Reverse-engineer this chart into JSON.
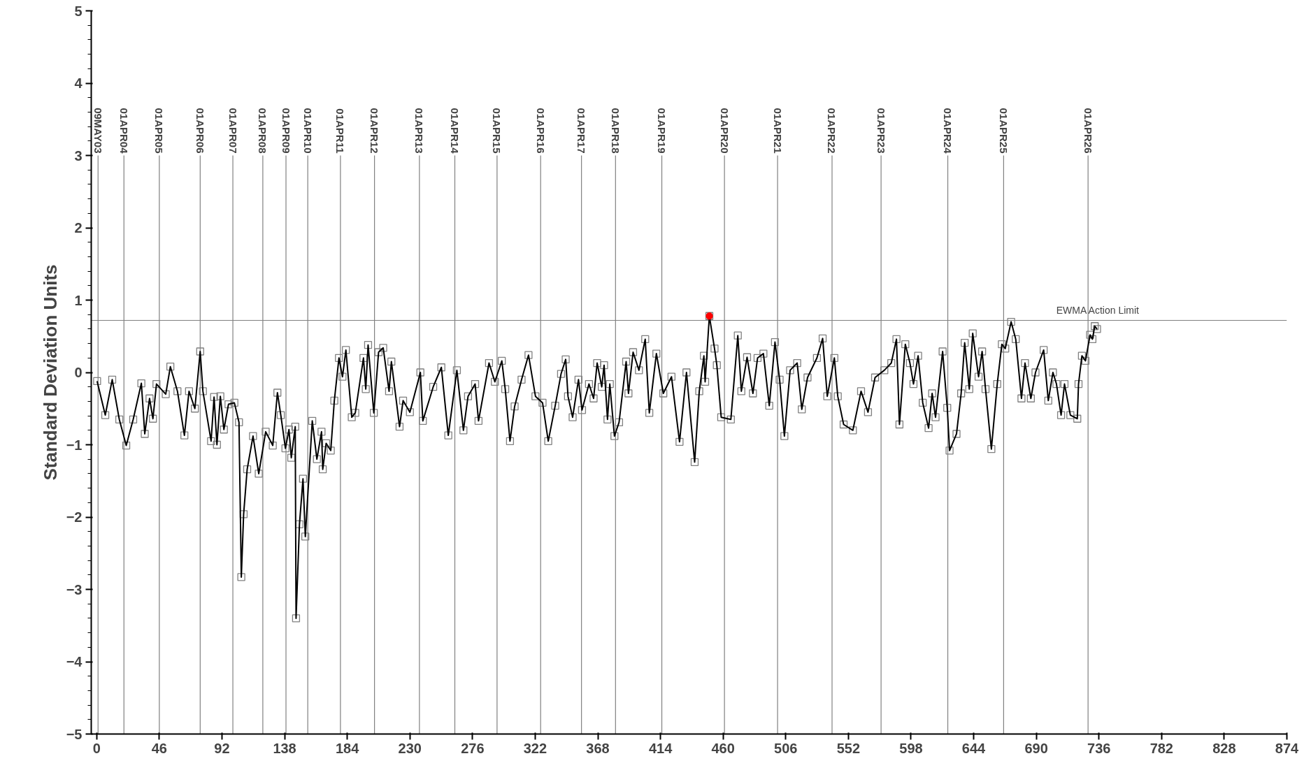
{
  "chart_data": {
    "type": "line",
    "ylabel": "Standard Deviation Units",
    "xlim": [
      -4,
      874
    ],
    "ylim": [
      -5,
      5
    ],
    "xticks": [
      0,
      46,
      92,
      138,
      184,
      230,
      276,
      322,
      368,
      414,
      460,
      506,
      552,
      598,
      644,
      690,
      736,
      782,
      828,
      874
    ],
    "yticks": [
      -5,
      -4,
      -3,
      -2,
      -1,
      0,
      1,
      2,
      3,
      4,
      5
    ],
    "grid": false,
    "marker": "square",
    "line_style": "solid",
    "series": [
      {
        "color": "#000000",
        "x": [
          0.3,
          6.3,
          11.4,
          16.6,
          21.7,
          26.8,
          32.8,
          35.3,
          38.8,
          41.3,
          43.9,
          50.7,
          54.1,
          59.3,
          64.4,
          67.8,
          72.1,
          76.0,
          78.0,
          84.0,
          86.2,
          88.3,
          90.8,
          93.4,
          96.8,
          101.1,
          104.5,
          106.2,
          107.9,
          110.5,
          114.8,
          119.0,
          124.1,
          129.3,
          132.7,
          135.2,
          138.6,
          141.2,
          142.9,
          145.8,
          146.4,
          148.9,
          151.5,
          153.2,
          158.3,
          161.7,
          165.1,
          166.0,
          168.5,
          171.9,
          174.5,
          177.9,
          180.5,
          183.0,
          187.3,
          189.9,
          195.9,
          197.6,
          199.3,
          203.5,
          207.0,
          210.4,
          214.7,
          216.4,
          222.4,
          225.0,
          230.0,
          237.7,
          239.5,
          247.1,
          253.1,
          258.2,
          264.5,
          269.3,
          272.7,
          277.9,
          280.4,
          288.1,
          292.4,
          297.5,
          300.0,
          303.5,
          306.9,
          312.0,
          317.1,
          322.2,
          327.4,
          331.6,
          336.7,
          341.0,
          344.4,
          346.1,
          349.5,
          353.8,
          356.4,
          361.5,
          364.9,
          367.5,
          370.9,
          372.6,
          375.1,
          376.8,
          380.2,
          383.6,
          388.8,
          390.5,
          393.9,
          398.2,
          402.8,
          405.8,
          411.0,
          416.1,
          422.1,
          428.0,
          433.1,
          439.1,
          442.5,
          445.9,
          446.8,
          449.9,
          453.7,
          455.4,
          458.6,
          465.7,
          470.8,
          473.4,
          477.6,
          481.9,
          485.3,
          489.6,
          493.9,
          498.1,
          501.5,
          505.0,
          509.2,
          514.4,
          517.8,
          522.0,
          528.9,
          533.1,
          536.5,
          541.7,
          544.2,
          548.5,
          555.3,
          561.3,
          566.4,
          571.6,
          578.4,
          583.5,
          587.3,
          589.5,
          593.8,
          597.2,
          599.8,
          603.2,
          606.6,
          610.9,
          613.5,
          616.0,
          621.2,
          624.6,
          626.3,
          631.4,
          634.8,
          637.4,
          640.8,
          643.3,
          647.6,
          650.2,
          652.7,
          657.0,
          661.3,
          664.7,
          667.2,
          671.5,
          674.9,
          679.1,
          681.7,
          686.0,
          689.4,
          695.4,
          698.8,
          702.2,
          704.8,
          708.2,
          710.7,
          715.0,
          720.1,
          721.0,
          723.5,
          726.1,
          729.5,
          731.2,
          732.9,
          734.6
        ],
        "values": [
          -0.12,
          -0.59,
          -0.1,
          -0.65,
          -1.01,
          -0.65,
          -0.15,
          -0.85,
          -0.36,
          -0.64,
          -0.16,
          -0.3,
          0.08,
          -0.26,
          -0.87,
          -0.26,
          -0.5,
          0.29,
          -0.26,
          -0.95,
          -0.34,
          -1.0,
          -0.33,
          -0.79,
          -0.44,
          -0.42,
          -0.69,
          -2.83,
          -1.96,
          -1.34,
          -0.88,
          -1.4,
          -0.82,
          -1.01,
          -0.28,
          -0.59,
          -1.05,
          -0.79,
          -1.18,
          -0.75,
          -3.4,
          -2.1,
          -1.47,
          -2.27,
          -0.67,
          -1.2,
          -0.82,
          -1.34,
          -0.98,
          -1.08,
          -0.39,
          0.2,
          -0.06,
          0.31,
          -0.62,
          -0.56,
          0.2,
          -0.23,
          0.38,
          -0.56,
          0.28,
          0.34,
          -0.26,
          0.15,
          -0.75,
          -0.39,
          -0.55,
          0.0,
          -0.67,
          -0.2,
          0.07,
          -0.87,
          0.03,
          -0.8,
          -0.33,
          -0.16,
          -0.67,
          0.13,
          -0.13,
          0.16,
          -0.23,
          -0.95,
          -0.47,
          -0.1,
          0.24,
          -0.33,
          -0.42,
          -0.95,
          -0.46,
          -0.02,
          0.18,
          -0.33,
          -0.62,
          -0.1,
          -0.52,
          -0.16,
          -0.36,
          0.13,
          -0.2,
          0.1,
          -0.65,
          -0.16,
          -0.88,
          -0.69,
          0.15,
          -0.29,
          0.28,
          0.03,
          0.46,
          -0.56,
          0.26,
          -0.29,
          -0.06,
          -0.96,
          0.0,
          -1.24,
          -0.26,
          0.23,
          -0.13,
          0.78,
          0.33,
          0.1,
          -0.62,
          -0.65,
          0.51,
          -0.26,
          0.21,
          -0.29,
          0.2,
          0.26,
          -0.46,
          0.42,
          -0.1,
          -0.88,
          0.03,
          0.13,
          -0.51,
          -0.07,
          0.2,
          0.47,
          -0.33,
          0.2,
          -0.33,
          -0.72,
          -0.8,
          -0.26,
          -0.55,
          -0.07,
          0.03,
          0.13,
          0.46,
          -0.72,
          0.39,
          0.13,
          -0.16,
          0.23,
          -0.42,
          -0.77,
          -0.29,
          -0.62,
          0.29,
          -0.49,
          -1.08,
          -0.85,
          -0.29,
          0.41,
          -0.23,
          0.54,
          -0.06,
          0.29,
          -0.23,
          -1.06,
          -0.16,
          0.39,
          0.33,
          0.7,
          0.46,
          -0.36,
          0.13,
          -0.36,
          0.0,
          0.31,
          -0.39,
          0.0,
          -0.16,
          -0.59,
          -0.16,
          -0.59,
          -0.64,
          -0.16,
          0.23,
          0.16,
          0.52,
          0.46,
          0.64,
          0.6
        ]
      },
      {
        "type": "scatter",
        "marker": "circle",
        "color": "#ff0000",
        "x": [
          449.9
        ],
        "values": [
          0.78
        ]
      }
    ],
    "ref_lines": [
      {
        "axis": "y",
        "value": 0.72,
        "label": "EWMA Action Limit",
        "color": "#808080"
      },
      {
        "axis": "x",
        "value": 1,
        "label": "09MAY03",
        "color": "#808080"
      },
      {
        "axis": "x",
        "value": 20,
        "label": "01APR04",
        "color": "#808080"
      },
      {
        "axis": "x",
        "value": 46,
        "label": "01APR05",
        "color": "#808080"
      },
      {
        "axis": "x",
        "value": 76,
        "label": "01APR06",
        "color": "#808080"
      },
      {
        "axis": "x",
        "value": 100,
        "label": "01APR07",
        "color": "#808080"
      },
      {
        "axis": "x",
        "value": 122,
        "label": "01APR08",
        "color": "#808080"
      },
      {
        "axis": "x",
        "value": 139,
        "label": "01APR09",
        "color": "#808080"
      },
      {
        "axis": "x",
        "value": 155,
        "label": "01APR10",
        "color": "#808080"
      },
      {
        "axis": "x",
        "value": 179,
        "label": "01APR11",
        "color": "#808080"
      },
      {
        "axis": "x",
        "value": 204,
        "label": "01APR12",
        "color": "#808080"
      },
      {
        "axis": "x",
        "value": 237,
        "label": "01APR13",
        "color": "#808080"
      },
      {
        "axis": "x",
        "value": 263,
        "label": "01APR14",
        "color": "#808080"
      },
      {
        "axis": "x",
        "value": 294,
        "label": "01APR15",
        "color": "#808080"
      },
      {
        "axis": "x",
        "value": 326,
        "label": "01APR16",
        "color": "#808080"
      },
      {
        "axis": "x",
        "value": 356,
        "label": "01APR17",
        "color": "#808080"
      },
      {
        "axis": "x",
        "value": 381,
        "label": "01APR18",
        "color": "#808080"
      },
      {
        "axis": "x",
        "value": 415,
        "label": "01APR19",
        "color": "#808080"
      },
      {
        "axis": "x",
        "value": 461,
        "label": "01APR20",
        "color": "#808080"
      },
      {
        "axis": "x",
        "value": 500,
        "label": "01APR21",
        "color": "#808080"
      },
      {
        "axis": "x",
        "value": 540,
        "label": "01APR22",
        "color": "#808080"
      },
      {
        "axis": "x",
        "value": 576,
        "label": "01APR23",
        "color": "#808080"
      },
      {
        "axis": "x",
        "value": 625,
        "label": "01APR24",
        "color": "#808080"
      },
      {
        "axis": "x",
        "value": 666,
        "label": "01APR25",
        "color": "#808080"
      },
      {
        "axis": "x",
        "value": 728,
        "label": "01APR26",
        "color": "#808080"
      }
    ]
  }
}
